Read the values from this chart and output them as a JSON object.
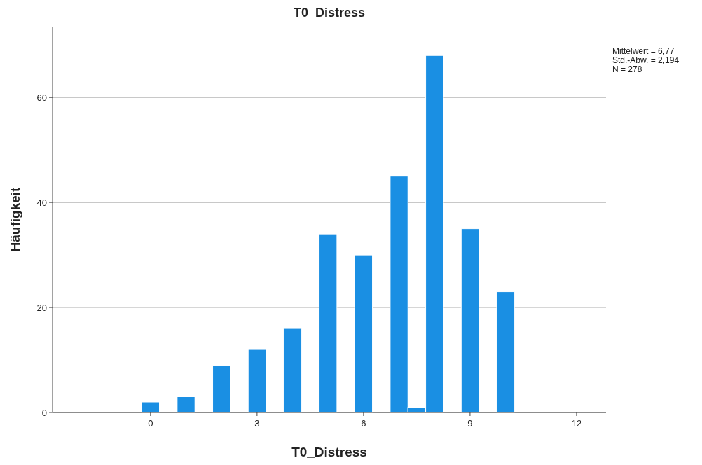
{
  "chart_data": {
    "type": "histogram",
    "title": "T0_Distress",
    "xlabel": "T0_Distress",
    "ylabel": "Häufigkeit",
    "bins": [
      -0.25,
      0.25,
      0.75,
      1.25,
      1.75,
      2.25,
      2.75,
      3.25,
      3.75,
      4.25,
      4.75,
      5.25,
      5.75,
      6.25,
      6.75,
      7.25,
      7.75,
      8.25,
      8.75,
      9.25,
      9.75,
      10.25
    ],
    "values": [
      2,
      0,
      3,
      0,
      9,
      0,
      12,
      0,
      16,
      0,
      34,
      0,
      30,
      0,
      45,
      1,
      68,
      0,
      35,
      0,
      23
    ],
    "color": "#1a8fe3",
    "xlim": [
      -2.76,
      12.83
    ],
    "xticks": [
      0,
      3,
      6,
      9,
      12
    ],
    "ylim": [
      0,
      73.5
    ],
    "yticks": [
      0,
      20,
      40,
      60
    ],
    "grid": "y",
    "annotations": [
      "Mittelwert = 6,77",
      "Std.-Abw. = 2,194",
      "N = 278"
    ]
  }
}
